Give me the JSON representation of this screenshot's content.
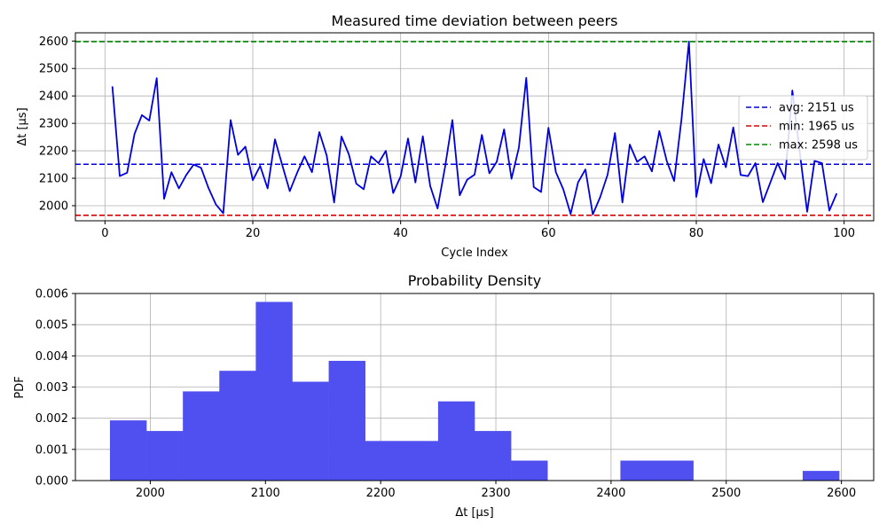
{
  "chart_data": [
    {
      "type": "line",
      "title": "Measured time deviation between peers",
      "xlabel": "Cycle Index",
      "ylabel": "Δt [µs]",
      "xlim": [
        -4,
        104
      ],
      "ylim": [
        1945,
        2630
      ],
      "xticks": [
        0,
        20,
        40,
        60,
        80,
        100
      ],
      "yticks": [
        2000,
        2100,
        2200,
        2300,
        2400,
        2500,
        2600
      ],
      "grid": true,
      "legend_position": "right",
      "series": [
        {
          "color": "#0000dd",
          "x": [
            1,
            2,
            3,
            4,
            5,
            6,
            7,
            8,
            9,
            10,
            11,
            12,
            13,
            14,
            15,
            16,
            17,
            18,
            19,
            20,
            21,
            22,
            23,
            24,
            25,
            26,
            27,
            28,
            29,
            30,
            31,
            32,
            33,
            34,
            35,
            36,
            37,
            38,
            39,
            40,
            41,
            42,
            43,
            44,
            45,
            46,
            47,
            48,
            49,
            50,
            51,
            52,
            53,
            54,
            55,
            56,
            57,
            58,
            59,
            60,
            61,
            62,
            63,
            64,
            65,
            66,
            67,
            68,
            69,
            70,
            71,
            72,
            73,
            74,
            75,
            76,
            77,
            78,
            79,
            80,
            81,
            82,
            83,
            84,
            85,
            86,
            87,
            88,
            89,
            90,
            91,
            92,
            93,
            94,
            95,
            96,
            97,
            98,
            99
          ],
          "y": [
            2435,
            2108,
            2120,
            2262,
            2330,
            2310,
            2465,
            2025,
            2122,
            2063,
            2112,
            2150,
            2138,
            2065,
            2005,
            1972,
            2312,
            2185,
            2215,
            2093,
            2145,
            2063,
            2242,
            2147,
            2053,
            2120,
            2180,
            2122,
            2268,
            2183,
            2012,
            2252,
            2187,
            2080,
            2060,
            2180,
            2155,
            2200,
            2046,
            2107,
            2245,
            2085,
            2253,
            2072,
            1990,
            2140,
            2312,
            2038,
            2095,
            2113,
            2258,
            2118,
            2160,
            2278,
            2098,
            2212,
            2466,
            2068,
            2050,
            2284,
            2122,
            2060,
            1970,
            2085,
            2132,
            1968,
            2032,
            2113,
            2265,
            2012,
            2223,
            2160,
            2180,
            2125,
            2272,
            2163,
            2090,
            2315,
            2598,
            2032,
            2170,
            2082,
            2223,
            2140,
            2285,
            2112,
            2108,
            2155,
            2013,
            2083,
            2155,
            2097,
            2420,
            2193,
            1978,
            2163,
            2155,
            1982,
            2045
          ]
        }
      ],
      "reference_lines": [
        {
          "label": "avg: 2151 us",
          "value": 2151,
          "color": "#0000dd"
        },
        {
          "label": "min: 1965 us",
          "value": 1965,
          "color": "#dd0000"
        },
        {
          "label": "max: 2598 us",
          "value": 2598,
          "color": "#008800"
        }
      ]
    },
    {
      "type": "bar",
      "title": "Probability Density",
      "xlabel": "Δt [µs]",
      "ylabel": "PDF",
      "xlim": [
        1935,
        2628
      ],
      "ylim": [
        0,
        0.006
      ],
      "xticks": [
        2000,
        2100,
        2200,
        2300,
        2400,
        2500,
        2600
      ],
      "yticks": [
        0.0,
        0.001,
        0.002,
        0.003,
        0.004,
        0.005,
        0.006
      ],
      "yticklabels": [
        "0.000",
        "0.001",
        "0.002",
        "0.003",
        "0.004",
        "0.005",
        "0.006"
      ],
      "grid": true,
      "color": "#5050f0",
      "bin_start": 1965,
      "bin_width": 31.65,
      "values": [
        0.00193,
        0.00159,
        0.00286,
        0.00352,
        0.00573,
        0.00317,
        0.00384,
        0.00127,
        0.00127,
        0.00254,
        0.00159,
        0.00064,
        0,
        0,
        0.00064,
        0.00064,
        0,
        0,
        0,
        0.00031
      ]
    }
  ]
}
